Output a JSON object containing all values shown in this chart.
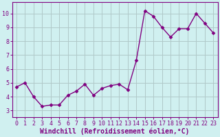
{
  "x": [
    0,
    1,
    2,
    3,
    4,
    5,
    6,
    7,
    8,
    9,
    10,
    11,
    12,
    13,
    14,
    15,
    16,
    17,
    18,
    19,
    20,
    21,
    22,
    23
  ],
  "y": [
    4.7,
    5.0,
    4.0,
    3.3,
    3.4,
    3.4,
    4.1,
    4.4,
    4.9,
    4.1,
    4.6,
    4.8,
    4.9,
    4.5,
    6.6,
    10.2,
    9.8,
    9.0,
    8.3,
    8.9,
    8.9,
    10.0,
    9.3,
    8.6
  ],
  "line_color": "#800080",
  "marker": "D",
  "marker_size": 2.5,
  "linewidth": 1.0,
  "xlabel": "Windchill (Refroidissement éolien,°C)",
  "xlim": [
    -0.5,
    23.5
  ],
  "ylim": [
    2.5,
    10.8
  ],
  "yticks": [
    3,
    4,
    5,
    6,
    7,
    8,
    9,
    10
  ],
  "xticks": [
    0,
    1,
    2,
    3,
    4,
    5,
    6,
    7,
    8,
    9,
    10,
    11,
    12,
    13,
    14,
    15,
    16,
    17,
    18,
    19,
    20,
    21,
    22,
    23
  ],
  "background_color": "#d0f0f0",
  "grid_color": "#b0c8c8",
  "tick_color": "#800080",
  "label_color": "#800080",
  "spine_color": "#800080",
  "xlabel_fontsize": 7.0,
  "tick_fontsize": 6.0
}
